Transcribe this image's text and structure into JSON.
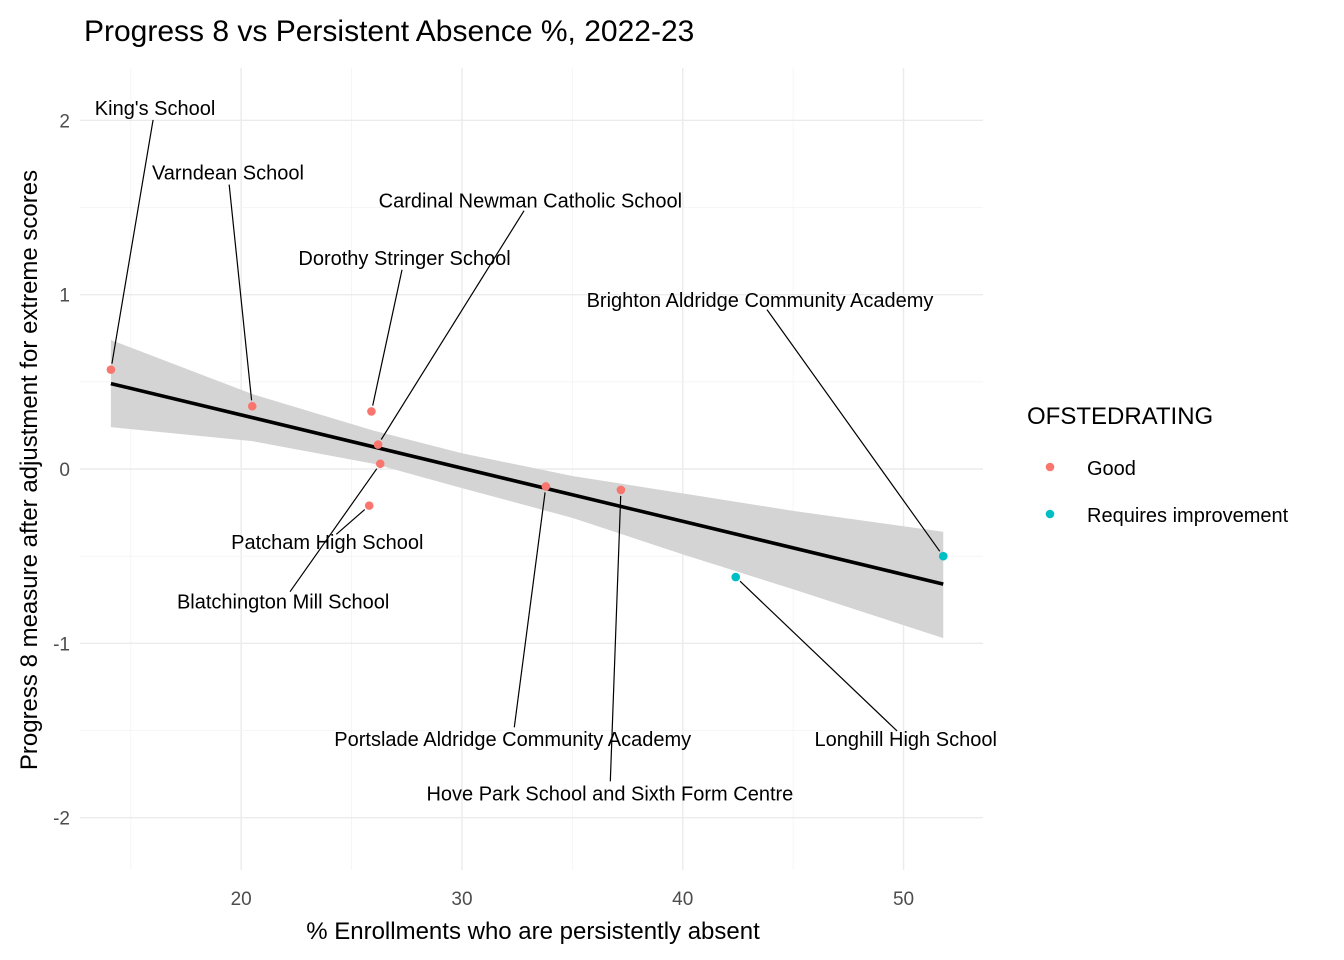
{
  "chart_data": {
    "type": "scatter",
    "title": "Progress 8 vs Persistent Absence %, 2022-23",
    "xlabel": "% Enrollments who are persistently absent",
    "ylabel": "Progress 8 measure after adjustment for extreme scores",
    "xlim": [
      12.7,
      53.6
    ],
    "ylim": [
      -2.3,
      2.3
    ],
    "xticks": [
      20,
      30,
      40,
      50
    ],
    "yticks": [
      -2,
      -1,
      0,
      1,
      2
    ],
    "grid": true,
    "legend": {
      "title": "OFSTEDRATING",
      "placement": "right",
      "entries": [
        {
          "name": "Good",
          "color": "#F8766D"
        },
        {
          "name": "Requires improvement",
          "color": "#00BFC4"
        }
      ]
    },
    "series": [
      {
        "name": "Good",
        "color": "#F8766D",
        "points": [
          {
            "label": "King's School",
            "x": 14.1,
            "y": 0.57,
            "lx": 16.1,
            "ly": 2.07
          },
          {
            "label": "Varndean School",
            "x": 20.5,
            "y": 0.36,
            "lx": 19.4,
            "ly": 1.7
          },
          {
            "label": "Dorothy Stringer School",
            "x": 25.9,
            "y": 0.33,
            "lx": 27.4,
            "ly": 1.21
          },
          {
            "label": "Cardinal Newman Catholic School",
            "x": 26.2,
            "y": 0.14,
            "lx": 33.1,
            "ly": 1.54
          },
          {
            "label": "Blatchington Mill School",
            "x": 26.3,
            "y": 0.03,
            "lx": 21.9,
            "ly": -0.76
          },
          {
            "label": "Patcham High School",
            "x": 25.8,
            "y": -0.21,
            "lx": 23.9,
            "ly": -0.42
          },
          {
            "label": "Portslade Aldridge Community Academy",
            "x": 33.8,
            "y": -0.1,
            "lx": 32.3,
            "ly": -1.55
          },
          {
            "label": "Hove Park School and Sixth Form Centre",
            "x": 37.2,
            "y": -0.12,
            "lx": 36.7,
            "ly": -1.86
          }
        ]
      },
      {
        "name": "Requires improvement",
        "color": "#00BFC4",
        "points": [
          {
            "label": "Brighton Aldridge Community Academy",
            "x": 51.8,
            "y": -0.5,
            "lx": 43.5,
            "ly": 0.97
          },
          {
            "label": "Longhill High School",
            "x": 42.4,
            "y": -0.62,
            "lx": 50.1,
            "ly": -1.55
          }
        ]
      }
    ],
    "fit": {
      "method": "lm",
      "color": "#000000",
      "band_color": "#d4d4d4",
      "line": [
        [
          14.1,
          0.49
        ],
        [
          51.8,
          -0.66
        ]
      ],
      "band": [
        {
          "x": 14.1,
          "lo": 0.24,
          "hi": 0.74
        },
        {
          "x": 20.5,
          "lo": 0.16,
          "hi": 0.43
        },
        {
          "x": 26.0,
          "lo": 0.03,
          "hi": 0.22
        },
        {
          "x": 30.0,
          "lo": -0.11,
          "hi": 0.09
        },
        {
          "x": 35.0,
          "lo": -0.28,
          "hi": -0.04
        },
        {
          "x": 40.0,
          "lo": -0.49,
          "hi": -0.14
        },
        {
          "x": 45.0,
          "lo": -0.69,
          "hi": -0.24
        },
        {
          "x": 51.8,
          "lo": -0.97,
          "hi": -0.36
        }
      ]
    }
  }
}
